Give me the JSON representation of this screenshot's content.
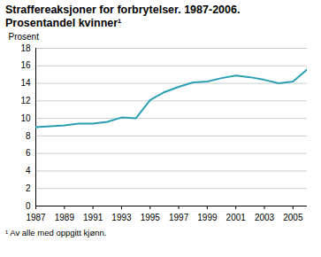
{
  "chart_data": {
    "type": "line",
    "title": "Straffereaksjoner for forbrytelser. 1987-2006.",
    "subtitle": "Prosentandel kvinner¹",
    "ylabel": "Prosent",
    "caption": "¹ Av alle med oppgitt kjønn.",
    "x": [
      1987,
      1988,
      1989,
      1990,
      1991,
      1992,
      1993,
      1994,
      1995,
      1996,
      1997,
      1998,
      1999,
      2000,
      2001,
      2002,
      2003,
      2004,
      2005,
      2006
    ],
    "values": [
      9.0,
      9.1,
      9.2,
      9.4,
      9.4,
      9.6,
      10.1,
      10.0,
      12.1,
      13.0,
      13.6,
      14.1,
      14.2,
      14.6,
      14.9,
      14.7,
      14.4,
      14.0,
      14.2,
      15.6
    ],
    "color": "#2a9fb3",
    "xlim": [
      1987,
      2006
    ],
    "xticks": [
      1987,
      1989,
      1991,
      1993,
      1995,
      1997,
      1999,
      2001,
      2003,
      2005
    ],
    "ylim": [
      0,
      18
    ],
    "yticks": [
      0,
      2,
      4,
      6,
      8,
      10,
      12,
      14,
      16,
      18
    ],
    "grid": true
  }
}
